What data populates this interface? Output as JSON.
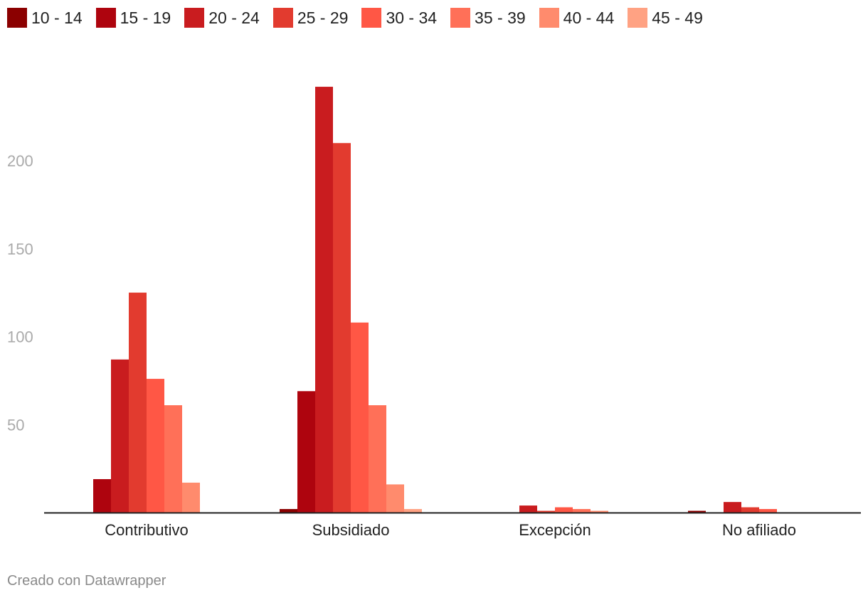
{
  "chart_data": {
    "type": "bar",
    "categories": [
      "Contributivo",
      "Subsidiado",
      "Excepción",
      "No afiliado"
    ],
    "series": [
      {
        "name": "10 - 14",
        "color": "#8b0000",
        "values": [
          0,
          2,
          0,
          1
        ]
      },
      {
        "name": "15 - 19",
        "color": "#ae040e",
        "values": [
          19,
          69,
          0,
          0
        ]
      },
      {
        "name": "20 - 24",
        "color": "#c91c1f",
        "values": [
          87,
          242,
          4,
          6
        ]
      },
      {
        "name": "25 - 29",
        "color": "#e23b2f",
        "values": [
          125,
          210,
          1,
          3
        ]
      },
      {
        "name": "30 - 34",
        "color": "#ff5745",
        "values": [
          76,
          108,
          3,
          2
        ]
      },
      {
        "name": "35 - 39",
        "color": "#ff7058",
        "values": [
          61,
          61,
          2,
          0
        ]
      },
      {
        "name": "40 - 44",
        "color": "#ff8b6d",
        "values": [
          17,
          16,
          1,
          0
        ]
      },
      {
        "name": "45 - 49",
        "color": "#ffa283",
        "values": [
          0,
          2,
          0,
          0
        ]
      }
    ],
    "y_ticks": [
      50,
      100,
      150,
      200
    ],
    "ylim": [
      0,
      250
    ],
    "grid": false,
    "legend": "top-left"
  },
  "footer": "Creado con Datawrapper"
}
